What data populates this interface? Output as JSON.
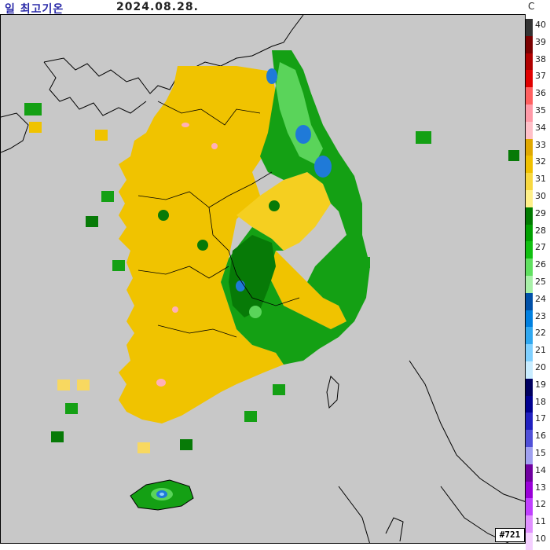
{
  "header": {
    "title": "일 최고기온",
    "date": "2024.08.28.",
    "unit": "C"
  },
  "badge": "#721",
  "legend": {
    "levels": [
      {
        "label": "40",
        "color": "#333333"
      },
      {
        "label": "39",
        "color": "#7a0000"
      },
      {
        "label": "38",
        "color": "#b00000"
      },
      {
        "label": "37",
        "color": "#e00000"
      },
      {
        "label": "36",
        "color": "#ff6060"
      },
      {
        "label": "35",
        "color": "#ff9aa8"
      },
      {
        "label": "34",
        "color": "#ffc0c8"
      },
      {
        "label": "33",
        "color": "#e0a800"
      },
      {
        "label": "32",
        "color": "#f0c000"
      },
      {
        "label": "31",
        "color": "#f8d840"
      },
      {
        "label": "30",
        "color": "#fff088"
      },
      {
        "label": "29",
        "color": "#007a00"
      },
      {
        "label": "28",
        "color": "#00a000"
      },
      {
        "label": "27",
        "color": "#10c010"
      },
      {
        "label": "26",
        "color": "#60e060"
      },
      {
        "label": "25",
        "color": "#a8f0a8"
      },
      {
        "label": "24",
        "color": "#0050a8"
      },
      {
        "label": "23",
        "color": "#0080e0"
      },
      {
        "label": "22",
        "color": "#30a8f0"
      },
      {
        "label": "21",
        "color": "#80d0ff"
      },
      {
        "label": "20",
        "color": "#c8ecff"
      },
      {
        "label": "19",
        "color": "#000060"
      },
      {
        "label": "18",
        "color": "#000090"
      },
      {
        "label": "17",
        "color": "#2020c0"
      },
      {
        "label": "16",
        "color": "#5050d8"
      },
      {
        "label": "15",
        "color": "#a0a0f0"
      },
      {
        "label": "14",
        "color": "#7000a0"
      },
      {
        "label": "13",
        "color": "#9a00d8"
      },
      {
        "label": "12",
        "color": "#c040ff"
      },
      {
        "label": "11",
        "color": "#e090ff"
      },
      {
        "label": "10",
        "color": "#f4d0ff"
      }
    ]
  },
  "map": {
    "colors": {
      "background": "#c8c8c8",
      "warm_base": "#f0c300",
      "warm_light": "#f8d860",
      "cool_base": "#14a014",
      "cool_dark": "#077a07",
      "cool_light": "#5ad45a",
      "blue": "#1f7ad8",
      "light_blue": "#8fd0ff",
      "pink": "#ffb0b8"
    }
  }
}
